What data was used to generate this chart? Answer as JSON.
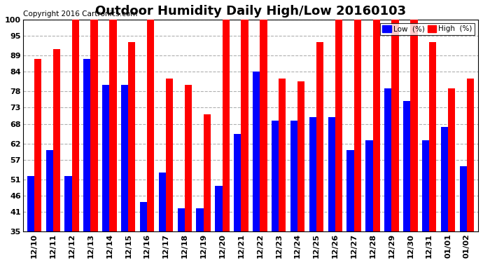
{
  "title": "Outdoor Humidity Daily High/Low 20160103",
  "copyright": "Copyright 2016 Cartronics.com",
  "categories": [
    "12/10",
    "12/11",
    "12/12",
    "12/13",
    "12/14",
    "12/15",
    "12/16",
    "12/17",
    "12/18",
    "12/19",
    "12/20",
    "12/21",
    "12/22",
    "12/23",
    "12/24",
    "12/25",
    "12/26",
    "12/27",
    "12/28",
    "12/29",
    "12/30",
    "12/31",
    "01/01",
    "01/02"
  ],
  "high_values": [
    88,
    91,
    100,
    100,
    100,
    93,
    100,
    82,
    80,
    71,
    100,
    100,
    100,
    82,
    81,
    93,
    100,
    100,
    100,
    100,
    100,
    93,
    79,
    82
  ],
  "low_values": [
    52,
    60,
    52,
    88,
    80,
    80,
    44,
    53,
    42,
    42,
    49,
    65,
    84,
    69,
    69,
    70,
    70,
    60,
    63,
    79,
    75,
    63,
    67,
    55
  ],
  "high_color": "#ff0000",
  "low_color": "#0000ff",
  "bg_color": "#ffffff",
  "plot_bg_color": "#ffffff",
  "grid_color": "#b0b0b0",
  "yticks": [
    35,
    41,
    46,
    51,
    57,
    62,
    68,
    73,
    78,
    84,
    89,
    95,
    100
  ],
  "ylim_min": 35,
  "ylim_max": 100,
  "title_fontsize": 13,
  "copyright_fontsize": 7.5,
  "tick_fontsize": 8,
  "bar_width": 0.38
}
